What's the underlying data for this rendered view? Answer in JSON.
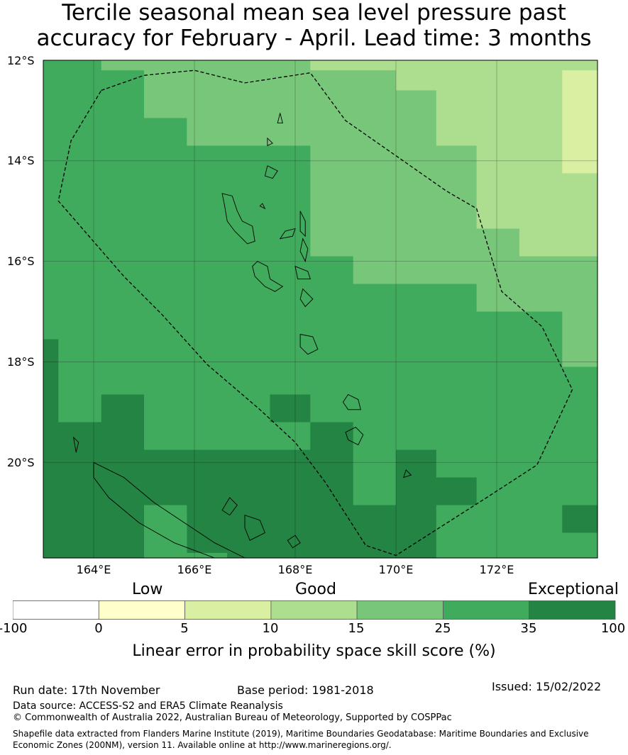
{
  "title": {
    "line1": "Tercile seasonal mean sea level pressure past",
    "line2": "accuracy for February - April. Lead time: 3 months"
  },
  "map": {
    "lon_range": [
      163.0,
      174.0
    ],
    "lat_range": [
      -21.9,
      -12.0
    ],
    "lat_labels": [
      "12°S",
      "14°S",
      "16°S",
      "18°S",
      "20°S"
    ],
    "lon_labels": [
      "164°E",
      "166°E",
      "168°E",
      "170°E",
      "172°E"
    ],
    "gridlines": true
  },
  "colorbar": {
    "category_labels": [
      "Low",
      "Good",
      "Exceptional"
    ],
    "bins": [
      {
        "from": -100,
        "to": 0,
        "color": "#ffffff"
      },
      {
        "from": 0,
        "to": 5,
        "color": "#ffffcc"
      },
      {
        "from": 5,
        "to": 10,
        "color": "#d9f0a3"
      },
      {
        "from": 10,
        "to": 15,
        "color": "#addd8e"
      },
      {
        "from": 15,
        "to": 25,
        "color": "#78c679"
      },
      {
        "from": 25,
        "to": 35,
        "color": "#41ab5d"
      },
      {
        "from": 35,
        "to": 100,
        "color": "#238443"
      }
    ],
    "tick_labels": [
      "-100",
      "0",
      "5",
      "10",
      "15",
      "25",
      "35",
      "100"
    ],
    "title": "Linear error in probability space skill score (%)"
  },
  "footer": {
    "run_date": "Run date: 17th November",
    "base_period": "Base period: 1981-2018",
    "issued": "Issued: 15/02/2022",
    "data_source": "Data source: ACCESS-S2 and ERA5 Climate Reanalysis",
    "copyright": "© Commonwealth of Australia 2022, Australian Bureau of Meteorology, Supported by COSPPac",
    "shapefile": "Shapefile data extracted from Flanders Marine Institute (2019), Maritime Boundaries Geodatabase: Maritime Boundaries and Exclusive Economic Zones (200NM), version 11. Available online at http://www.marineregions.org/."
  }
}
